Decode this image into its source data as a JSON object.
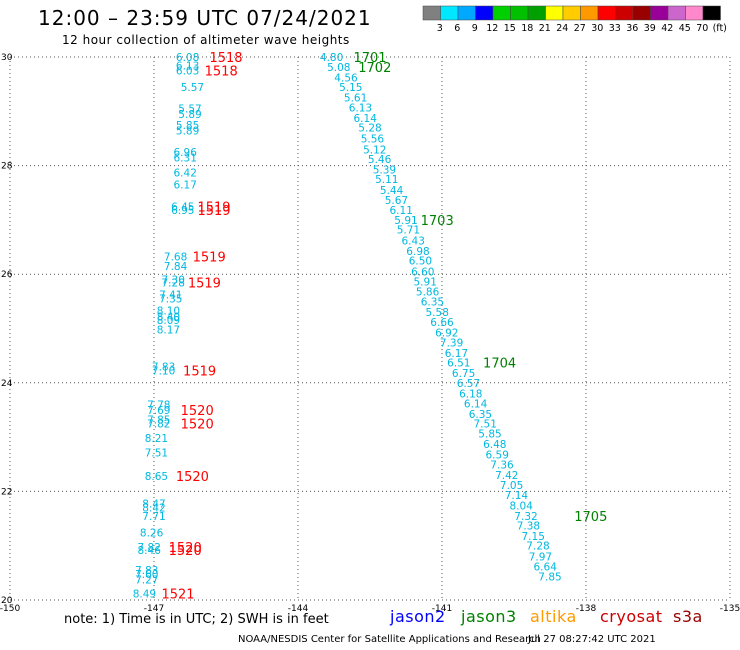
{
  "header": {
    "title": "12:00 – 23:59 UTC 07/24/2021",
    "subtitle": "12 hour collection of altimeter wave heights"
  },
  "colorbar": {
    "colors": [
      "#808080",
      "#00e8ff",
      "#00a8ff",
      "#0000ff",
      "#00d000",
      "#00c000",
      "#00a000",
      "#ffff00",
      "#ffcc00",
      "#ff9900",
      "#ff0000",
      "#cc0000",
      "#990000",
      "#990099",
      "#cc66cc",
      "#ff88cc",
      "#000000"
    ],
    "labels": [
      "3",
      "6",
      "9",
      "12",
      "15",
      "18",
      "21",
      "24",
      "27",
      "30",
      "33",
      "36",
      "39",
      "42",
      "45",
      "70",
      "(ft)"
    ]
  },
  "footer": {
    "note": "note:  1) Time is in UTC;  2) SWH is in feet",
    "satellites": [
      {
        "name": "jason2",
        "color": "#0000ff"
      },
      {
        "name": "jason3",
        "color": "#008000"
      },
      {
        "name": "altika",
        "color": "#ff9900"
      },
      {
        "name": "cryosat",
        "color": "#cc0000"
      },
      {
        "name": "s3a",
        "color": "#990000"
      }
    ],
    "credit": "NOAA/NESDIS Center for Satellite Applications and Research",
    "timestamp": "Jul 27 08:27:42 UTC 2021"
  },
  "chart_data": {
    "type": "scatter",
    "xlim": [
      -150,
      -135
    ],
    "ylim": [
      20,
      30
    ],
    "xticks": [
      "-150",
      "-147",
      "-144",
      "-141",
      "-138",
      "-135"
    ],
    "yticks": [
      "20",
      "22",
      "24",
      "26",
      "28",
      "30"
    ],
    "grid": true,
    "series": [
      {
        "color": "#00b8e0",
        "points": [
          {
            "x": -146.3,
            "y": 30.0,
            "v": "6.08"
          },
          {
            "x": -146.3,
            "y": 29.84,
            "v": "6.13"
          },
          {
            "x": -146.3,
            "y": 29.75,
            "v": "6.03"
          },
          {
            "x": -146.2,
            "y": 29.45,
            "v": "5.57"
          },
          {
            "x": -146.25,
            "y": 29.05,
            "v": "5.57"
          },
          {
            "x": -146.25,
            "y": 28.95,
            "v": "5.89"
          },
          {
            "x": -146.3,
            "y": 28.75,
            "v": "5.85"
          },
          {
            "x": -146.3,
            "y": 28.65,
            "v": "5.89"
          },
          {
            "x": -146.35,
            "y": 28.25,
            "v": "6.96"
          },
          {
            "x": -146.35,
            "y": 28.15,
            "v": "6.31"
          },
          {
            "x": -146.35,
            "y": 27.87,
            "v": "6.42"
          },
          {
            "x": -146.35,
            "y": 27.65,
            "v": "6.17"
          },
          {
            "x": -146.4,
            "y": 27.25,
            "v": "6.45"
          },
          {
            "x": -146.4,
            "y": 27.18,
            "v": "6.95"
          },
          {
            "x": -146.55,
            "y": 26.33,
            "v": "7.68"
          },
          {
            "x": -146.55,
            "y": 26.15,
            "v": "7.84"
          },
          {
            "x": -146.6,
            "y": 25.9,
            "v": "7.30"
          },
          {
            "x": -146.6,
            "y": 25.85,
            "v": "7.28"
          },
          {
            "x": -146.65,
            "y": 25.63,
            "v": "7.41"
          },
          {
            "x": -146.65,
            "y": 25.55,
            "v": "7.35"
          },
          {
            "x": -146.7,
            "y": 25.33,
            "v": "8.10"
          },
          {
            "x": -146.7,
            "y": 25.22,
            "v": "8.40"
          },
          {
            "x": -146.7,
            "y": 25.16,
            "v": "8.09"
          },
          {
            "x": -146.7,
            "y": 24.98,
            "v": "8.17"
          },
          {
            "x": -146.8,
            "y": 24.3,
            "v": "7.83"
          },
          {
            "x": -146.8,
            "y": 24.23,
            "v": "7.10"
          },
          {
            "x": -146.9,
            "y": 23.6,
            "v": "7.78"
          },
          {
            "x": -146.9,
            "y": 23.5,
            "v": "7.69"
          },
          {
            "x": -146.9,
            "y": 23.32,
            "v": "7.85"
          },
          {
            "x": -146.9,
            "y": 23.25,
            "v": "7.82"
          },
          {
            "x": -146.95,
            "y": 22.98,
            "v": "8.21"
          },
          {
            "x": -146.95,
            "y": 22.72,
            "v": "7.51"
          },
          {
            "x": -146.95,
            "y": 22.28,
            "v": "8.65"
          },
          {
            "x": -147.0,
            "y": 21.78,
            "v": "8.47"
          },
          {
            "x": -147.0,
            "y": 21.7,
            "v": "8.42"
          },
          {
            "x": -147.0,
            "y": 21.55,
            "v": "7.71"
          },
          {
            "x": -147.05,
            "y": 21.24,
            "v": "8.26"
          },
          {
            "x": -147.1,
            "y": 20.98,
            "v": "7.82"
          },
          {
            "x": -147.1,
            "y": 20.92,
            "v": "8.46"
          },
          {
            "x": -147.15,
            "y": 20.55,
            "v": "7.83"
          },
          {
            "x": -147.15,
            "y": 20.48,
            "v": "7.60"
          },
          {
            "x": -147.15,
            "y": 20.38,
            "v": "7.27"
          },
          {
            "x": -147.2,
            "y": 20.12,
            "v": "8.49"
          },
          {
            "x": -143.3,
            "y": 30.0,
            "v": "4.80"
          },
          {
            "x": -143.15,
            "y": 29.82,
            "v": "5.08"
          },
          {
            "x": -143.0,
            "y": 29.62,
            "v": "4.56"
          },
          {
            "x": -142.9,
            "y": 29.45,
            "v": "5.15"
          },
          {
            "x": -142.8,
            "y": 29.25,
            "v": "5.61"
          },
          {
            "x": -142.7,
            "y": 29.07,
            "v": "6.13"
          },
          {
            "x": -142.6,
            "y": 28.88,
            "v": "6.14"
          },
          {
            "x": -142.5,
            "y": 28.7,
            "v": "5.28"
          },
          {
            "x": -142.45,
            "y": 28.5,
            "v": "5.56"
          },
          {
            "x": -142.4,
            "y": 28.3,
            "v": "5.12"
          },
          {
            "x": -142.3,
            "y": 28.12,
            "v": "5.46"
          },
          {
            "x": -142.2,
            "y": 27.93,
            "v": "5.39"
          },
          {
            "x": -142.15,
            "y": 27.75,
            "v": "5.11"
          },
          {
            "x": -142.05,
            "y": 27.55,
            "v": "5.44"
          },
          {
            "x": -141.95,
            "y": 27.37,
            "v": "5.67"
          },
          {
            "x": -141.85,
            "y": 27.18,
            "v": "6.11"
          },
          {
            "x": -141.75,
            "y": 27.0,
            "v": "5.91"
          },
          {
            "x": -141.7,
            "y": 26.82,
            "v": "5.71"
          },
          {
            "x": -141.6,
            "y": 26.62,
            "v": "6.43"
          },
          {
            "x": -141.5,
            "y": 26.43,
            "v": "6.98"
          },
          {
            "x": -141.45,
            "y": 26.25,
            "v": "6.50"
          },
          {
            "x": -141.4,
            "y": 26.05,
            "v": "6.60"
          },
          {
            "x": -141.35,
            "y": 25.87,
            "v": "5.91"
          },
          {
            "x": -141.3,
            "y": 25.68,
            "v": "5.86"
          },
          {
            "x": -141.2,
            "y": 25.5,
            "v": "6.35"
          },
          {
            "x": -141.1,
            "y": 25.3,
            "v": "5.58"
          },
          {
            "x": -141.0,
            "y": 25.12,
            "v": "6.66"
          },
          {
            "x": -140.9,
            "y": 24.93,
            "v": "6.92"
          },
          {
            "x": -140.8,
            "y": 24.74,
            "v": "7.39"
          },
          {
            "x": -140.7,
            "y": 24.55,
            "v": "6.17"
          },
          {
            "x": -140.65,
            "y": 24.37,
            "v": "6.51"
          },
          {
            "x": -140.55,
            "y": 24.18,
            "v": "6.75"
          },
          {
            "x": -140.45,
            "y": 24.0,
            "v": "6.57"
          },
          {
            "x": -140.4,
            "y": 23.8,
            "v": "6.18"
          },
          {
            "x": -140.3,
            "y": 23.62,
            "v": "6.14"
          },
          {
            "x": -140.2,
            "y": 23.43,
            "v": "6.35"
          },
          {
            "x": -140.1,
            "y": 23.25,
            "v": "7.51"
          },
          {
            "x": -140.0,
            "y": 23.07,
            "v": "5.85"
          },
          {
            "x": -139.9,
            "y": 22.87,
            "v": "6.48"
          },
          {
            "x": -139.85,
            "y": 22.68,
            "v": "6.59"
          },
          {
            "x": -139.75,
            "y": 22.5,
            "v": "7.36"
          },
          {
            "x": -139.65,
            "y": 22.3,
            "v": "7.42"
          },
          {
            "x": -139.55,
            "y": 22.12,
            "v": "7.05"
          },
          {
            "x": -139.45,
            "y": 21.93,
            "v": "7.14"
          },
          {
            "x": -139.35,
            "y": 21.74,
            "v": "8.04"
          },
          {
            "x": -139.25,
            "y": 21.55,
            "v": "7.32"
          },
          {
            "x": -139.2,
            "y": 21.37,
            "v": "7.38"
          },
          {
            "x": -139.1,
            "y": 21.18,
            "v": "7.15"
          },
          {
            "x": -139.0,
            "y": 21.0,
            "v": "7.28"
          },
          {
            "x": -138.95,
            "y": 20.8,
            "v": "7.97"
          },
          {
            "x": -138.85,
            "y": 20.62,
            "v": "6.64"
          },
          {
            "x": -138.75,
            "y": 20.43,
            "v": "7.85"
          }
        ]
      }
    ],
    "annotations": [
      {
        "x": -145.5,
        "y": 30.0,
        "text": "1518",
        "color": "#ff0000"
      },
      {
        "x": -145.6,
        "y": 29.75,
        "text": "1518",
        "color": "#ff0000"
      },
      {
        "x": -145.75,
        "y": 27.25,
        "text": "1519",
        "color": "#ff0000"
      },
      {
        "x": -145.75,
        "y": 27.18,
        "text": "1519",
        "color": "#ff0000"
      },
      {
        "x": -145.85,
        "y": 26.33,
        "text": "1519",
        "color": "#ff0000"
      },
      {
        "x": -145.95,
        "y": 25.85,
        "text": "1519",
        "color": "#ff0000"
      },
      {
        "x": -146.05,
        "y": 24.23,
        "text": "1519",
        "color": "#ff0000"
      },
      {
        "x": -146.1,
        "y": 23.5,
        "text": "1520",
        "color": "#ff0000"
      },
      {
        "x": -146.1,
        "y": 23.25,
        "text": "1520",
        "color": "#ff0000"
      },
      {
        "x": -146.2,
        "y": 22.28,
        "text": "1520",
        "color": "#ff0000"
      },
      {
        "x": -146.35,
        "y": 20.98,
        "text": "1520",
        "color": "#ff0000"
      },
      {
        "x": -146.35,
        "y": 20.92,
        "text": "1520",
        "color": "#ff0000"
      },
      {
        "x": -146.5,
        "y": 20.12,
        "text": "1521",
        "color": "#ff0000"
      },
      {
        "x": -142.5,
        "y": 30.0,
        "text": "1701",
        "color": "#008000"
      },
      {
        "x": -142.4,
        "y": 29.82,
        "text": "1702",
        "color": "#008000"
      },
      {
        "x": -141.1,
        "y": 27.0,
        "text": "1703",
        "color": "#008000"
      },
      {
        "x": -139.8,
        "y": 24.37,
        "text": "1704",
        "color": "#008000"
      },
      {
        "x": -137.9,
        "y": 21.55,
        "text": "1705",
        "color": "#008000"
      }
    ]
  }
}
